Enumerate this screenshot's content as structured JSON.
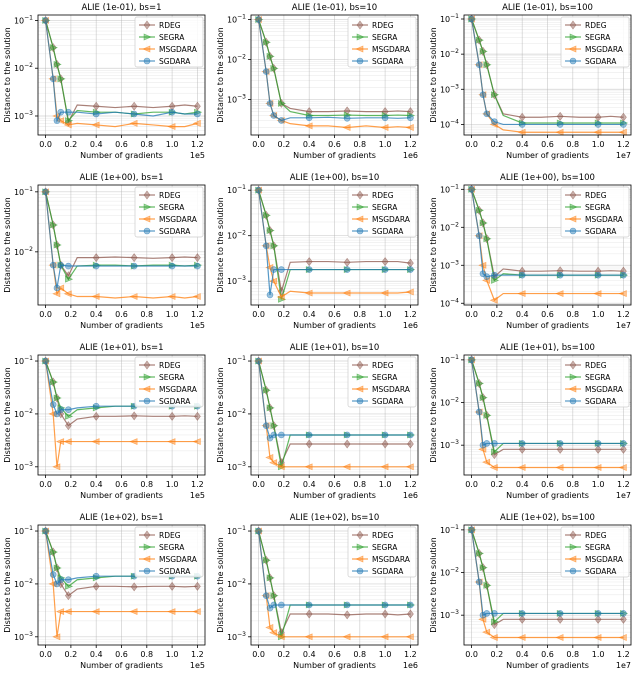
{
  "common": {
    "x": [
      0,
      0.06,
      0.09,
      0.12,
      0.18,
      0.25,
      0.4,
      0.55,
      0.7,
      0.85,
      1.0,
      1.1,
      1.2
    ],
    "xticks": [
      0.0,
      0.2,
      0.4,
      0.6,
      0.8,
      1.0,
      1.2
    ],
    "xlim": [
      -0.06,
      1.26
    ],
    "xlabel": "Number of gradients",
    "ylabel": "Distance to the solution",
    "yscale": "log",
    "grid": true,
    "legend_placement": "top-right",
    "series_style": [
      {
        "name": "RDEG",
        "color": "#8c564b",
        "marker": "diamond"
      },
      {
        "name": "SEGRA",
        "color": "#2ca02c",
        "marker": "triangle-right"
      },
      {
        "name": "MSGDARA",
        "color": "#ff7f0e",
        "marker": "triangle-left"
      },
      {
        "name": "SGDARA",
        "color": "#1f77b4",
        "marker": "circle"
      }
    ]
  },
  "chart_data": [
    {
      "type": "line",
      "title": "ALIE (1e-01), bs=1",
      "x_multiplier": "1e5",
      "ylim": [
        0.0004,
        0.13
      ],
      "series": [
        {
          "name": "RDEG",
          "values": [
            0.1,
            0.027,
            0.012,
            0.006,
            0.00075,
            0.0017,
            0.0016,
            0.0015,
            0.0016,
            0.0015,
            0.0016,
            0.0017,
            0.0016
          ]
        },
        {
          "name": "SEGRA",
          "values": [
            0.1,
            0.027,
            0.012,
            0.006,
            0.0008,
            0.0013,
            0.0012,
            0.0012,
            0.0011,
            0.0012,
            0.0012,
            0.0011,
            0.0012
          ]
        },
        {
          "name": "MSGDARA",
          "values": [
            0.1,
            0.006,
            0.001,
            0.0008,
            0.00065,
            0.0007,
            0.00065,
            0.0006,
            0.0007,
            0.00065,
            0.0006,
            0.0006,
            0.0007
          ]
        },
        {
          "name": "SGDARA",
          "values": [
            0.1,
            0.006,
            0.0008,
            0.0012,
            0.0012,
            0.0012,
            0.0011,
            0.0012,
            0.0011,
            0.001,
            0.0012,
            0.0011,
            0.0011
          ]
        }
      ]
    },
    {
      "type": "line",
      "title": "ALIE (1e-01), bs=10",
      "x_multiplier": "1e6",
      "ylim": [
        0.00013,
        0.13
      ],
      "series": [
        {
          "name": "RDEG",
          "values": [
            0.1,
            0.027,
            0.012,
            0.006,
            0.0008,
            0.0006,
            0.0005,
            0.0005,
            0.00052,
            0.0005,
            0.0005,
            0.00052,
            0.0005
          ]
        },
        {
          "name": "SEGRA",
          "values": [
            0.1,
            0.027,
            0.012,
            0.006,
            0.0008,
            0.0005,
            0.0004,
            0.0004,
            0.00041,
            0.0004,
            0.0004,
            0.00041,
            0.0004
          ]
        },
        {
          "name": "MSGDARA",
          "values": [
            0.1,
            0.005,
            0.0008,
            0.0004,
            0.0003,
            0.00025,
            0.00022,
            0.00022,
            0.0002,
            0.00022,
            0.0002,
            0.00021,
            0.0002
          ]
        },
        {
          "name": "SGDARA",
          "values": [
            0.1,
            0.005,
            0.0008,
            0.0004,
            0.0003,
            0.00035,
            0.00035,
            0.00036,
            0.00034,
            0.00035,
            0.00035,
            0.00034,
            0.00035
          ]
        }
      ]
    },
    {
      "type": "line",
      "title": "ALIE (1e-01), bs=100",
      "x_multiplier": "1e7",
      "ylim": [
        5e-05,
        0.13
      ],
      "series": [
        {
          "name": "RDEG",
          "values": [
            0.1,
            0.025,
            0.012,
            0.005,
            0.0007,
            0.0002,
            0.00016,
            0.00016,
            0.00017,
            0.00016,
            0.00016,
            0.00017,
            0.00016
          ]
        },
        {
          "name": "SEGRA",
          "values": [
            0.1,
            0.025,
            0.012,
            0.005,
            0.0007,
            0.00018,
            0.00011,
            0.00011,
            0.00011,
            0.00011,
            0.00011,
            0.00011,
            0.00011
          ]
        },
        {
          "name": "MSGDARA",
          "values": [
            0.1,
            0.005,
            0.0007,
            0.0002,
            0.0001,
            7e-05,
            6e-05,
            6e-05,
            6e-05,
            6e-05,
            6e-05,
            6e-05,
            6e-05
          ]
        },
        {
          "name": "SGDARA",
          "values": [
            0.1,
            0.005,
            0.0007,
            0.0002,
            0.00012,
            0.0001,
            0.0001,
            0.0001,
            0.0001,
            0.0001,
            0.0001,
            0.0001,
            0.0001
          ]
        }
      ]
    },
    {
      "type": "line",
      "title": "ALIE (1e+00), bs=1",
      "x_multiplier": "1e5",
      "ylim": [
        0.0013,
        0.13
      ],
      "series": [
        {
          "name": "RDEG",
          "values": [
            0.1,
            0.028,
            0.013,
            0.006,
            0.004,
            0.008,
            0.008,
            0.0082,
            0.008,
            0.0078,
            0.008,
            0.0082,
            0.008
          ]
        },
        {
          "name": "SEGRA",
          "values": [
            0.1,
            0.028,
            0.013,
            0.006,
            0.0035,
            0.0058,
            0.006,
            0.006,
            0.0058,
            0.006,
            0.006,
            0.0058,
            0.006
          ]
        },
        {
          "name": "MSGDARA",
          "values": [
            0.1,
            0.006,
            0.002,
            0.0025,
            0.002,
            0.0018,
            0.0018,
            0.0017,
            0.0018,
            0.0017,
            0.0018,
            0.0017,
            0.0018
          ]
        },
        {
          "name": "SGDARA",
          "values": [
            0.1,
            0.006,
            0.0025,
            0.006,
            0.0058,
            0.0058,
            0.0058,
            0.0058,
            0.0058,
            0.0058,
            0.0058,
            0.0058,
            0.0058
          ]
        }
      ]
    },
    {
      "type": "line",
      "title": "ALIE (1e+00), bs=10",
      "x_multiplier": "1e6",
      "ylim": [
        0.0003,
        0.13
      ],
      "series": [
        {
          "name": "RDEG",
          "values": [
            0.1,
            0.028,
            0.013,
            0.006,
            0.0006,
            0.0026,
            0.0027,
            0.0027,
            0.0026,
            0.0027,
            0.0027,
            0.0027,
            0.0025
          ]
        },
        {
          "name": "SEGRA",
          "values": [
            0.1,
            0.028,
            0.013,
            0.006,
            0.0004,
            0.0018,
            0.0018,
            0.0018,
            0.0018,
            0.0018,
            0.0018,
            0.0018,
            0.0018
          ]
        },
        {
          "name": "MSGDARA",
          "values": [
            0.1,
            0.006,
            0.002,
            0.001,
            0.00045,
            0.0006,
            0.00055,
            0.00055,
            0.00055,
            0.00055,
            0.00055,
            0.00055,
            0.00058
          ]
        },
        {
          "name": "SGDARA",
          "values": [
            0.1,
            0.006,
            0.0005,
            0.0018,
            0.0018,
            0.0018,
            0.0018,
            0.0018,
            0.0018,
            0.0018,
            0.0018,
            0.0018,
            0.0018
          ]
        }
      ]
    },
    {
      "type": "line",
      "title": "ALIE (1e+00), bs=100",
      "x_multiplier": "1e7",
      "ylim": [
        9e-05,
        0.13
      ],
      "series": [
        {
          "name": "RDEG",
          "values": [
            0.1,
            0.028,
            0.013,
            0.005,
            0.0005,
            0.0008,
            0.0007,
            0.0007,
            0.00072,
            0.0007,
            0.0007,
            0.00072,
            0.0007
          ]
        },
        {
          "name": "SEGRA",
          "values": [
            0.1,
            0.028,
            0.013,
            0.005,
            0.0004,
            0.0006,
            0.00055,
            0.00055,
            0.00055,
            0.00055,
            0.00055,
            0.00055,
            0.00055
          ]
        },
        {
          "name": "MSGDARA",
          "values": [
            0.1,
            0.006,
            0.001,
            0.0004,
            0.00012,
            0.00018,
            0.00018,
            0.00018,
            0.00018,
            0.00018,
            0.00018,
            0.00018,
            0.00018
          ]
        },
        {
          "name": "SGDARA",
          "values": [
            0.1,
            0.006,
            0.0006,
            0.0005,
            0.00055,
            0.00055,
            0.00055,
            0.00055,
            0.00055,
            0.00055,
            0.00055,
            0.00055,
            0.00055
          ]
        }
      ]
    },
    {
      "type": "line",
      "title": "ALIE (1e+01), bs=1",
      "x_multiplier": "1e5",
      "ylim": [
        0.0007,
        0.13
      ],
      "series": [
        {
          "name": "RDEG",
          "values": [
            0.1,
            0.04,
            0.02,
            0.01,
            0.006,
            0.008,
            0.009,
            0.009,
            0.0092,
            0.009,
            0.009,
            0.0092,
            0.009
          ]
        },
        {
          "name": "SEGRA",
          "values": [
            0.1,
            0.04,
            0.02,
            0.013,
            0.009,
            0.012,
            0.013,
            0.014,
            0.014,
            0.014,
            0.014,
            0.014,
            0.014
          ]
        },
        {
          "name": "MSGDARA",
          "values": [
            0.1,
            0.01,
            0.001,
            0.003,
            0.003,
            0.003,
            0.003,
            0.003,
            0.003,
            0.003,
            0.003,
            0.003,
            0.003
          ]
        },
        {
          "name": "SGDARA",
          "values": [
            0.1,
            0.015,
            0.01,
            0.012,
            0.012,
            0.013,
            0.014,
            0.014,
            0.014,
            0.014,
            0.014,
            0.014,
            0.014
          ]
        }
      ]
    },
    {
      "type": "line",
      "title": "ALIE (1e+01), bs=10",
      "x_multiplier": "1e6",
      "ylim": [
        0.0007,
        0.13
      ],
      "series": [
        {
          "name": "RDEG",
          "values": [
            0.1,
            0.028,
            0.013,
            0.006,
            0.0012,
            0.0027,
            0.0027,
            0.0027,
            0.0027,
            0.0027,
            0.0027,
            0.0027,
            0.0027
          ]
        },
        {
          "name": "SEGRA",
          "values": [
            0.1,
            0.028,
            0.013,
            0.006,
            0.001,
            0.004,
            0.004,
            0.004,
            0.004,
            0.004,
            0.004,
            0.004,
            0.004
          ]
        },
        {
          "name": "MSGDARA",
          "values": [
            0.1,
            0.006,
            0.0015,
            0.0012,
            0.001,
            0.001,
            0.001,
            0.001,
            0.001,
            0.001,
            0.001,
            0.001,
            0.001
          ]
        },
        {
          "name": "SGDARA",
          "values": [
            0.1,
            0.006,
            0.0035,
            0.004,
            0.004,
            0.004,
            0.004,
            0.004,
            0.004,
            0.004,
            0.004,
            0.004,
            0.004
          ]
        }
      ]
    },
    {
      "type": "line",
      "title": "ALIE (1e+01), bs=100",
      "x_multiplier": "1e7",
      "ylim": [
        0.0002,
        0.13
      ],
      "series": [
        {
          "name": "RDEG",
          "values": [
            0.1,
            0.028,
            0.013,
            0.005,
            0.0006,
            0.0008,
            0.0008,
            0.0008,
            0.0008,
            0.0008,
            0.0008,
            0.0008,
            0.0008
          ]
        },
        {
          "name": "SEGRA",
          "values": [
            0.1,
            0.028,
            0.013,
            0.005,
            0.0007,
            0.0011,
            0.0011,
            0.0011,
            0.0011,
            0.0011,
            0.0011,
            0.0011,
            0.0011
          ]
        },
        {
          "name": "MSGDARA",
          "values": [
            0.1,
            0.006,
            0.0008,
            0.0004,
            0.0003,
            0.0003,
            0.0003,
            0.0003,
            0.0003,
            0.0003,
            0.0003,
            0.0003,
            0.0003
          ]
        },
        {
          "name": "SGDARA",
          "values": [
            0.1,
            0.006,
            0.001,
            0.0011,
            0.0011,
            0.0011,
            0.0011,
            0.0011,
            0.0011,
            0.0011,
            0.0011,
            0.0011,
            0.0011
          ]
        }
      ]
    },
    {
      "type": "line",
      "title": "ALIE (1e+02), bs=1",
      "x_multiplier": "1e5",
      "ylim": [
        0.0007,
        0.13
      ],
      "series": [
        {
          "name": "RDEG",
          "values": [
            0.1,
            0.04,
            0.02,
            0.01,
            0.006,
            0.008,
            0.009,
            0.009,
            0.0088,
            0.009,
            0.009,
            0.0088,
            0.009
          ]
        },
        {
          "name": "SEGRA",
          "values": [
            0.1,
            0.04,
            0.02,
            0.013,
            0.009,
            0.012,
            0.013,
            0.014,
            0.014,
            0.014,
            0.014,
            0.014,
            0.014
          ]
        },
        {
          "name": "MSGDARA",
          "values": [
            0.1,
            0.01,
            0.001,
            0.003,
            0.003,
            0.003,
            0.003,
            0.003,
            0.003,
            0.003,
            0.003,
            0.003,
            0.003
          ]
        },
        {
          "name": "SGDARA",
          "values": [
            0.1,
            0.015,
            0.01,
            0.012,
            0.012,
            0.013,
            0.014,
            0.014,
            0.014,
            0.014,
            0.014,
            0.014,
            0.014
          ]
        }
      ]
    },
    {
      "type": "line",
      "title": "ALIE (1e+02), bs=10",
      "x_multiplier": "1e6",
      "ylim": [
        0.0007,
        0.13
      ],
      "series": [
        {
          "name": "RDEG",
          "values": [
            0.1,
            0.028,
            0.013,
            0.006,
            0.0012,
            0.0027,
            0.0027,
            0.0027,
            0.0026,
            0.0027,
            0.0027,
            0.0026,
            0.0027
          ]
        },
        {
          "name": "SEGRA",
          "values": [
            0.1,
            0.028,
            0.013,
            0.006,
            0.001,
            0.004,
            0.004,
            0.004,
            0.004,
            0.004,
            0.004,
            0.004,
            0.004
          ]
        },
        {
          "name": "MSGDARA",
          "values": [
            0.1,
            0.006,
            0.0015,
            0.0012,
            0.001,
            0.001,
            0.001,
            0.001,
            0.001,
            0.001,
            0.001,
            0.001,
            0.001
          ]
        },
        {
          "name": "SGDARA",
          "values": [
            0.1,
            0.006,
            0.0035,
            0.004,
            0.004,
            0.004,
            0.004,
            0.004,
            0.004,
            0.004,
            0.004,
            0.004,
            0.004
          ]
        }
      ]
    },
    {
      "type": "line",
      "title": "ALIE (1e+02), bs=100",
      "x_multiplier": "1e7",
      "ylim": [
        0.0002,
        0.13
      ],
      "series": [
        {
          "name": "RDEG",
          "values": [
            0.1,
            0.028,
            0.013,
            0.005,
            0.0006,
            0.0008,
            0.0008,
            0.0008,
            0.0008,
            0.0008,
            0.0008,
            0.0008,
            0.0008
          ]
        },
        {
          "name": "SEGRA",
          "values": [
            0.1,
            0.028,
            0.013,
            0.005,
            0.0007,
            0.0011,
            0.0011,
            0.0011,
            0.0011,
            0.0011,
            0.0011,
            0.0011,
            0.0011
          ]
        },
        {
          "name": "MSGDARA",
          "values": [
            0.1,
            0.006,
            0.0008,
            0.0004,
            0.0003,
            0.0003,
            0.0003,
            0.0003,
            0.0003,
            0.0003,
            0.0003,
            0.0003,
            0.0003
          ]
        },
        {
          "name": "SGDARA",
          "values": [
            0.1,
            0.006,
            0.001,
            0.0011,
            0.0011,
            0.0011,
            0.0011,
            0.0011,
            0.0011,
            0.0011,
            0.0011,
            0.0011,
            0.0011
          ]
        }
      ]
    }
  ]
}
